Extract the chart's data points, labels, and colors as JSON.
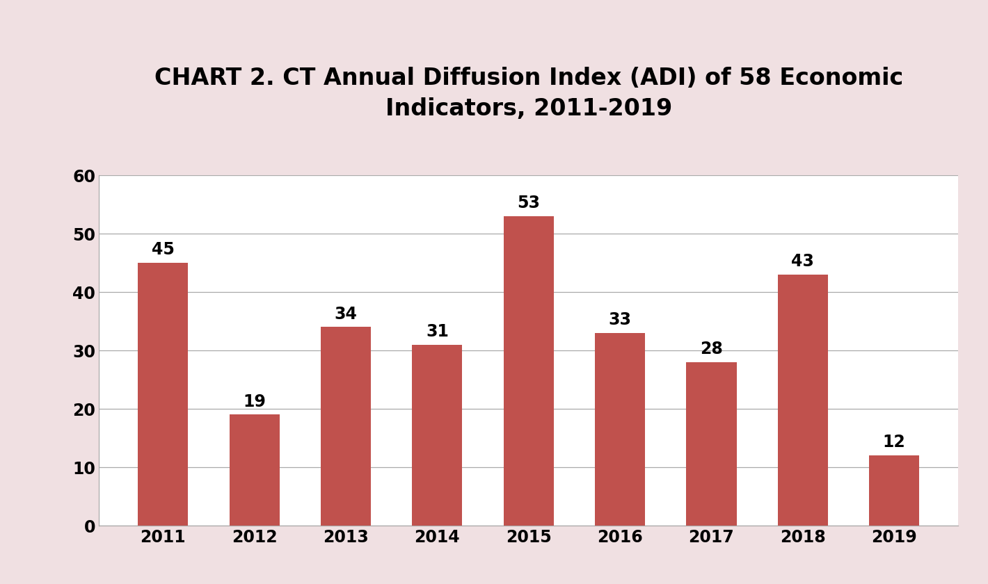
{
  "title": "CHART 2. CT Annual Diffusion Index (ADI) of 58 Economic\nIndicators, 2011-2019",
  "categories": [
    "2011",
    "2012",
    "2013",
    "2014",
    "2015",
    "2016",
    "2017",
    "2018",
    "2019"
  ],
  "values": [
    45,
    19,
    34,
    31,
    53,
    33,
    28,
    43,
    12
  ],
  "bar_color": "#c0514d",
  "background_color": "#f0e0e2",
  "plot_background_color": "#ffffff",
  "ylim": [
    0,
    60
  ],
  "yticks": [
    0,
    10,
    20,
    30,
    40,
    50,
    60
  ],
  "title_fontsize": 24,
  "tick_fontsize": 17,
  "label_fontsize": 17,
  "bar_width": 0.55
}
